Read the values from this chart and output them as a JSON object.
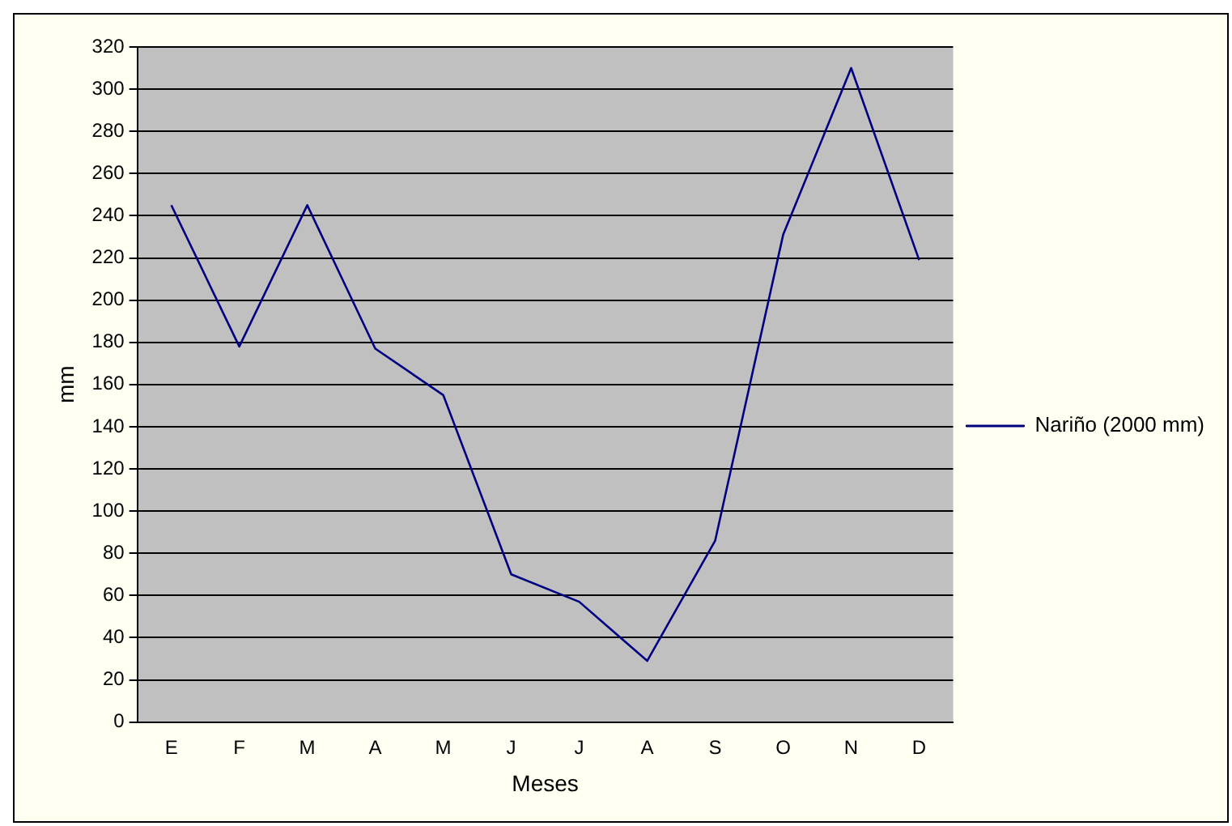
{
  "chart_data": {
    "type": "line",
    "xlabel": "Meses",
    "ylabel": "mm",
    "categories": [
      "E",
      "F",
      "M",
      "A",
      "M",
      "J",
      "J",
      "A",
      "S",
      "O",
      "N",
      "D"
    ],
    "series": [
      {
        "name": "Nariño (2000 mm)",
        "color": "#000080",
        "values": [
          245,
          178,
          245,
          177,
          155,
          70,
          57,
          29,
          86,
          231,
          310,
          219
        ]
      }
    ],
    "ylim": [
      0,
      320
    ],
    "yticks": [
      0,
      20,
      40,
      60,
      80,
      100,
      120,
      140,
      160,
      180,
      200,
      220,
      240,
      260,
      280,
      300,
      320
    ],
    "grid": "y",
    "legend": "right",
    "marker": "none",
    "line_style": "solid"
  }
}
